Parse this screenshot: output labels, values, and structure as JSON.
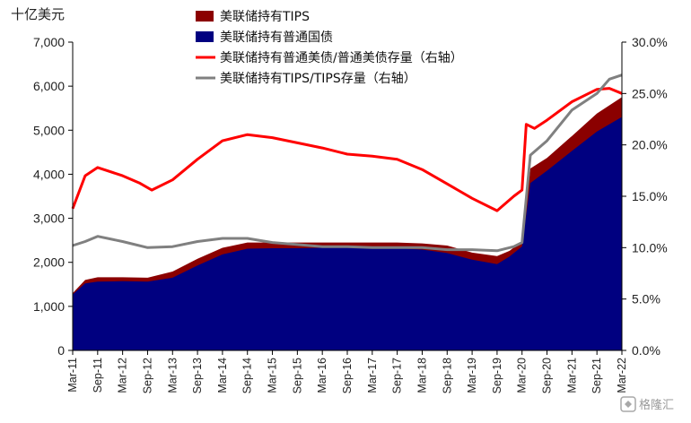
{
  "chart_data": {
    "type": "area",
    "title": "",
    "unit_label_left": "十亿美元",
    "ylim_left": [
      0,
      7000
    ],
    "yticks_left": [
      "0",
      "1,000",
      "2,000",
      "3,000",
      "4,000",
      "5,000",
      "6,000",
      "7,000"
    ],
    "ylim_right": [
      0,
      30
    ],
    "yticks_right": [
      "0.0%",
      "5.0%",
      "10.0%",
      "15.0%",
      "20.0%",
      "25.0%",
      "30.0%"
    ],
    "x_tick_labels": [
      "Mar-11",
      "Sep-11",
      "Mar-12",
      "Sep-12",
      "Mar-13",
      "Sep-13",
      "Mar-14",
      "Sep-14",
      "Mar-15",
      "Sep-15",
      "Mar-16",
      "Sep-16",
      "Mar-17",
      "Sep-17",
      "Mar-18",
      "Sep-18",
      "Mar-19",
      "Sep-19",
      "Mar-20",
      "Sep-20",
      "Mar-21",
      "Sep-21",
      "Mar-22"
    ],
    "x_start": "2011-03",
    "legend_position": "top",
    "grid": false,
    "series": [
      {
        "name": "美联储持有TIPS",
        "kind": "area",
        "axis": "left",
        "color": "#8B0000",
        "points": [
          [
            "2011-03",
            1300
          ],
          [
            "2011-06",
            1600
          ],
          [
            "2011-09",
            1660
          ],
          [
            "2012-03",
            1660
          ],
          [
            "2012-09",
            1650
          ],
          [
            "2013-03",
            1790
          ],
          [
            "2013-09",
            2080
          ],
          [
            "2014-03",
            2330
          ],
          [
            "2014-09",
            2450
          ],
          [
            "2015-03",
            2450
          ],
          [
            "2015-09",
            2450
          ],
          [
            "2016-03",
            2450
          ],
          [
            "2016-09",
            2450
          ],
          [
            "2017-03",
            2450
          ],
          [
            "2017-09",
            2450
          ],
          [
            "2018-03",
            2430
          ],
          [
            "2018-09",
            2380
          ],
          [
            "2019-03",
            2220
          ],
          [
            "2019-09",
            2140
          ],
          [
            "2019-12",
            2260
          ],
          [
            "2020-03",
            2480
          ],
          [
            "2020-05",
            4130
          ],
          [
            "2020-09",
            4370
          ],
          [
            "2021-03",
            4870
          ],
          [
            "2021-09",
            5380
          ],
          [
            "2022-03",
            5750
          ]
        ]
      },
      {
        "name": "美联储持有普通国债",
        "kind": "area",
        "axis": "left",
        "color": "#000080",
        "points": [
          [
            "2011-03",
            1270
          ],
          [
            "2011-06",
            1520
          ],
          [
            "2011-09",
            1560
          ],
          [
            "2012-03",
            1570
          ],
          [
            "2012-09",
            1560
          ],
          [
            "2013-03",
            1650
          ],
          [
            "2013-09",
            1930
          ],
          [
            "2014-03",
            2180
          ],
          [
            "2014-09",
            2310
          ],
          [
            "2015-03",
            2320
          ],
          [
            "2015-09",
            2320
          ],
          [
            "2016-03",
            2330
          ],
          [
            "2016-09",
            2330
          ],
          [
            "2017-03",
            2330
          ],
          [
            "2017-09",
            2320
          ],
          [
            "2018-03",
            2290
          ],
          [
            "2018-09",
            2210
          ],
          [
            "2019-03",
            2060
          ],
          [
            "2019-09",
            1960
          ],
          [
            "2019-12",
            2130
          ],
          [
            "2020-03",
            2360
          ],
          [
            "2020-05",
            3800
          ],
          [
            "2020-09",
            4080
          ],
          [
            "2021-03",
            4530
          ],
          [
            "2021-09",
            4970
          ],
          [
            "2022-03",
            5300
          ]
        ]
      },
      {
        "name": "美联储持有普通美债/普通美债存量（右轴）",
        "kind": "line",
        "axis": "right",
        "color": "#FF0000",
        "points": [
          [
            "2011-03",
            13.8
          ],
          [
            "2011-06",
            17.0
          ],
          [
            "2011-09",
            17.8
          ],
          [
            "2012-03",
            17.0
          ],
          [
            "2012-07",
            16.3
          ],
          [
            "2012-10",
            15.6
          ],
          [
            "2013-03",
            16.6
          ],
          [
            "2013-09",
            18.6
          ],
          [
            "2014-03",
            20.4
          ],
          [
            "2014-09",
            21.0
          ],
          [
            "2015-03",
            20.7
          ],
          [
            "2015-09",
            20.2
          ],
          [
            "2016-03",
            19.7
          ],
          [
            "2016-09",
            19.1
          ],
          [
            "2017-03",
            18.9
          ],
          [
            "2017-09",
            18.6
          ],
          [
            "2018-03",
            17.6
          ],
          [
            "2018-09",
            16.2
          ],
          [
            "2019-03",
            14.8
          ],
          [
            "2019-09",
            13.6
          ],
          [
            "2020-01",
            15.0
          ],
          [
            "2020-03",
            15.6
          ],
          [
            "2020-04",
            22.0
          ],
          [
            "2020-06",
            21.6
          ],
          [
            "2020-09",
            22.4
          ],
          [
            "2021-03",
            24.2
          ],
          [
            "2021-09",
            25.4
          ],
          [
            "2021-12",
            25.5
          ],
          [
            "2022-03",
            25.0
          ]
        ]
      },
      {
        "name": "美联储持有TIPS/TIPS存量（右轴）",
        "kind": "line",
        "axis": "right",
        "color": "#808080",
        "points": [
          [
            "2011-03",
            10.2
          ],
          [
            "2011-06",
            10.6
          ],
          [
            "2011-09",
            11.1
          ],
          [
            "2012-03",
            10.6
          ],
          [
            "2012-09",
            10.0
          ],
          [
            "2013-03",
            10.1
          ],
          [
            "2013-09",
            10.6
          ],
          [
            "2014-03",
            10.9
          ],
          [
            "2014-09",
            10.9
          ],
          [
            "2015-03",
            10.5
          ],
          [
            "2015-09",
            10.3
          ],
          [
            "2016-03",
            10.1
          ],
          [
            "2016-09",
            10.1
          ],
          [
            "2017-03",
            10.0
          ],
          [
            "2017-09",
            10.0
          ],
          [
            "2018-03",
            10.0
          ],
          [
            "2018-09",
            9.8
          ],
          [
            "2019-03",
            9.8
          ],
          [
            "2019-09",
            9.7
          ],
          [
            "2020-01",
            10.1
          ],
          [
            "2020-03",
            10.5
          ],
          [
            "2020-05",
            19.0
          ],
          [
            "2020-09",
            20.4
          ],
          [
            "2021-03",
            23.4
          ],
          [
            "2021-09",
            25.0
          ],
          [
            "2021-12",
            26.4
          ],
          [
            "2022-03",
            26.8
          ]
        ]
      }
    ]
  },
  "watermark": "格隆汇"
}
